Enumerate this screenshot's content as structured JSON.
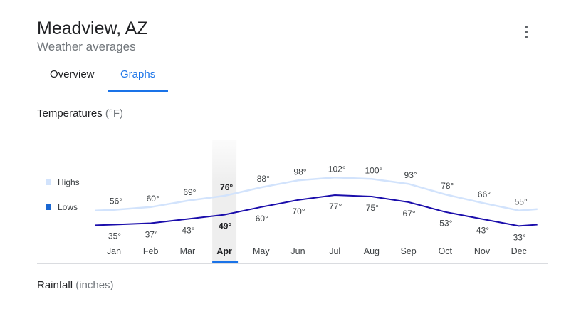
{
  "header": {
    "title": "Meadview, AZ",
    "subtitle": "Weather averages",
    "menu_icon": "more-vert-icon"
  },
  "tabs": [
    {
      "label": "Overview",
      "selected": false
    },
    {
      "label": "Graphs",
      "selected": true
    }
  ],
  "temperatures": {
    "title": "Temperatures",
    "unit": "(°F)"
  },
  "rainfall": {
    "title": "Rainfall",
    "unit": "(inches)"
  },
  "colors": {
    "accent": "#1a73e8",
    "highs_line": "#d2e3fc",
    "lows_line": "#1a0dab",
    "selected_band": "#eeeeee"
  },
  "chart_data": {
    "type": "line",
    "categories": [
      "Jan",
      "Feb",
      "Mar",
      "Apr",
      "May",
      "Jun",
      "Jul",
      "Aug",
      "Sep",
      "Oct",
      "Nov",
      "Dec"
    ],
    "selected_category": "Apr",
    "series": [
      {
        "name": "Highs",
        "values": [
          56,
          60,
          69,
          76,
          88,
          98,
          102,
          100,
          93,
          78,
          66,
          55
        ],
        "labels": [
          "56°",
          "60°",
          "69°",
          "76°",
          "88°",
          "98°",
          "102°",
          "100°",
          "93°",
          "78°",
          "66°",
          "55°"
        ]
      },
      {
        "name": "Lows",
        "values": [
          35,
          37,
          43,
          49,
          60,
          70,
          77,
          75,
          67,
          53,
          43,
          33
        ],
        "labels": [
          "35°",
          "37°",
          "43°",
          "49°",
          "60°",
          "70°",
          "77°",
          "75°",
          "67°",
          "53°",
          "43°",
          "33°"
        ]
      }
    ],
    "legend": "left",
    "grid": false
  }
}
